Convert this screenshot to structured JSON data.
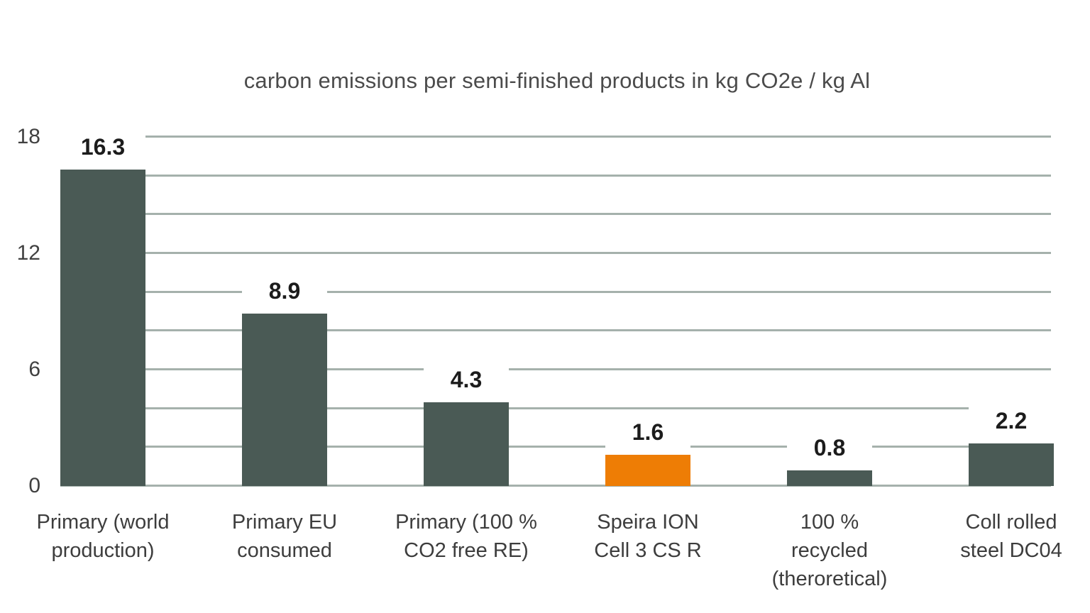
{
  "chart_data": {
    "type": "bar",
    "title": "carbon emissions per semi-finished products in kg CO2e / kg Al",
    "xlabel": "",
    "ylabel": "",
    "categories": [
      "Primary (world\nproduction)",
      "Primary EU\nconsumed",
      "Primary (100 %\nCO2 free RE)",
      "Speira ION\nCell 3 CS R",
      "100 %\nrecycled\n(theroretical)",
      "Coll rolled\nsteel DC04"
    ],
    "values": [
      16.3,
      8.9,
      4.3,
      1.6,
      0.8,
      2.2
    ],
    "value_labels": [
      "16.3",
      "8.9",
      "4.3",
      "1.6",
      "0.8",
      "2.2"
    ],
    "bar_colors": [
      "#4a5a55",
      "#4a5a55",
      "#4a5a55",
      "#ee7d05",
      "#4a5a55",
      "#4a5a55"
    ],
    "highlight_index": 3,
    "ylim": [
      0,
      18
    ],
    "ytick_labels": [
      "0",
      "6",
      "12",
      "18"
    ],
    "ytick_values": [
      0,
      6,
      12,
      18
    ],
    "gridline_step": 2,
    "grid": true,
    "legend": false,
    "colors": {
      "bar_default": "#4a5a55",
      "bar_highlight": "#ee7d05",
      "gridline": "#a5b1ac",
      "background": "#ffffff",
      "title_text": "#4b4b4b",
      "axis_text": "#414141",
      "value_text": "#1c1c1c",
      "category_text": "#3d3d3d"
    }
  }
}
